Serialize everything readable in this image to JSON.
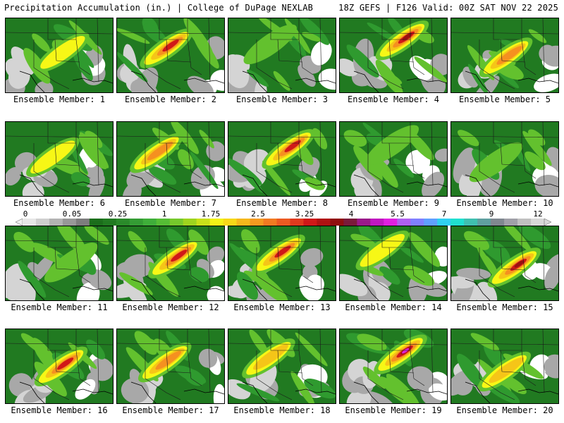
{
  "header": {
    "title_left": "Precipitation Accumulation (in.) | College of DuPage NEXLAB",
    "title_right": "18Z GEFS | F126 Valid: 00Z SAT NOV 22 2025"
  },
  "colors": {
    "light_gray": "#d4d4d4",
    "gray": "#a8a8a8",
    "dark_gray": "#808080",
    "green_dark": "#217a21",
    "green": "#2f9a2f",
    "green_light": "#63c12e",
    "yellow": "#f7f716",
    "gold": "#f5c518",
    "orange": "#f59020",
    "red_orange": "#e8481e",
    "red": "#d01818",
    "dark_red": "#9a1010",
    "purple": "#7a1a8a",
    "magenta": "#e020e0"
  },
  "colorbar": {
    "labels": [
      "0",
      "0.05",
      "0.25",
      "1",
      "1.75",
      "2.5",
      "3.25",
      "4",
      "5.5",
      "7",
      "9",
      "12"
    ],
    "colors": [
      "#e6e6e6",
      "#cfcfcf",
      "#b3b3b3",
      "#989898",
      "#7d7d7d",
      "#1b6e1b",
      "#217a21",
      "#2a8a2a",
      "#349c34",
      "#3fae3a",
      "#55bd35",
      "#76c92c",
      "#9ed41f",
      "#c8e01a",
      "#f2f216",
      "#f7d818",
      "#f5b81c",
      "#f59a20",
      "#f27a22",
      "#ec5a22",
      "#e03a1e",
      "#d01818",
      "#b01212",
      "#900e0e",
      "#7a1a3a",
      "#9a1a8a",
      "#c018c0",
      "#e020e0",
      "#b060f0",
      "#8080ff",
      "#60a0ff",
      "#30d0f0",
      "#20e0d0",
      "#40c0b0",
      "#60a0a0",
      "#808890",
      "#a0a0a8",
      "#c0c0c0",
      "#d8d8d8"
    ]
  },
  "members": [
    {
      "label": "Ensemble Member: 1",
      "intensity": 0.45
    },
    {
      "label": "Ensemble Member: 2",
      "intensity": 0.75
    },
    {
      "label": "Ensemble Member: 3",
      "intensity": 0.25
    },
    {
      "label": "Ensemble Member: 4",
      "intensity": 0.8
    },
    {
      "label": "Ensemble Member: 5",
      "intensity": 0.6
    },
    {
      "label": "Ensemble Member: 6",
      "intensity": 0.45
    },
    {
      "label": "Ensemble Member: 7",
      "intensity": 0.6
    },
    {
      "label": "Ensemble Member: 8",
      "intensity": 0.7
    },
    {
      "label": "Ensemble Member: 9",
      "intensity": 0.3
    },
    {
      "label": "Ensemble Member: 10",
      "intensity": 0.3
    },
    {
      "label": "Ensemble Member: 11",
      "intensity": 0.25
    },
    {
      "label": "Ensemble Member: 12",
      "intensity": 0.7
    },
    {
      "label": "Ensemble Member: 13",
      "intensity": 0.75
    },
    {
      "label": "Ensemble Member: 14",
      "intensity": 0.45
    },
    {
      "label": "Ensemble Member: 15",
      "intensity": 0.8
    },
    {
      "label": "Ensemble Member: 16",
      "intensity": 0.7
    },
    {
      "label": "Ensemble Member: 17",
      "intensity": 0.6
    },
    {
      "label": "Ensemble Member: 18",
      "intensity": 0.5
    },
    {
      "label": "Ensemble Member: 19",
      "intensity": 0.9
    },
    {
      "label": "Ensemble Member: 20",
      "intensity": 0.55
    }
  ]
}
